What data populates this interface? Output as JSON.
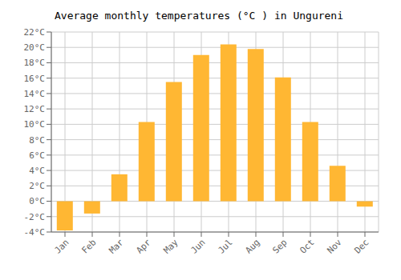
{
  "chart_data": {
    "type": "bar",
    "title": "Average monthly temperatures (°C ) in Ungureni",
    "categories": [
      "Jan",
      "Feb",
      "Mar",
      "Apr",
      "May",
      "Jun",
      "Jul",
      "Aug",
      "Sep",
      "Oct",
      "Nov",
      "Dec"
    ],
    "values": [
      -3.8,
      -1.6,
      3.5,
      10.3,
      15.5,
      19.0,
      20.4,
      19.8,
      16.1,
      10.3,
      4.6,
      -0.7
    ],
    "color": "#FFB733",
    "ylim": [
      -4,
      22
    ],
    "yticks": [
      {
        "value": -4,
        "label": "-4°C"
      },
      {
        "value": -2,
        "label": "-2°C"
      },
      {
        "value": 0,
        "label": "0°C"
      },
      {
        "value": 2,
        "label": "2°C"
      },
      {
        "value": 4,
        "label": "4°C"
      },
      {
        "value": 6,
        "label": "6°C"
      },
      {
        "value": 8,
        "label": "8°C"
      },
      {
        "value": 10,
        "label": "10°C"
      },
      {
        "value": 12,
        "label": "12°C"
      },
      {
        "value": 14,
        "label": "14°C"
      },
      {
        "value": 16,
        "label": "16°C"
      },
      {
        "value": 18,
        "label": "18°C"
      },
      {
        "value": 20,
        "label": "20°C"
      },
      {
        "value": 22,
        "label": "22°C"
      }
    ],
    "grid": true
  }
}
